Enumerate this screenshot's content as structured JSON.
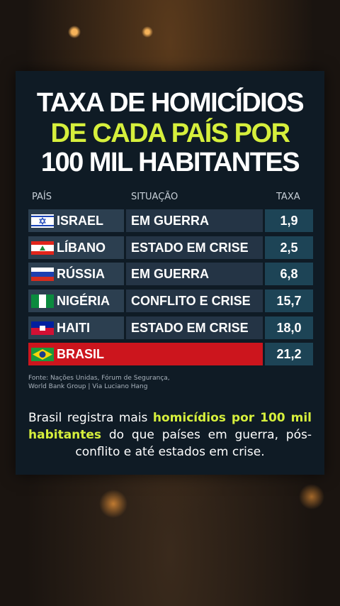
{
  "header": {
    "title_lines": [
      "TAXA DE HOMICÍDIOS",
      "DE CADA PAÍS POR",
      "100 MIL HABITANTES"
    ]
  },
  "table": {
    "columns": [
      "PAÍS",
      "SITUAÇÃO",
      "TAXA"
    ],
    "rows": [
      [
        "ISRAEL",
        "EM GUERRA",
        "1,9"
      ],
      [
        "LÍBANO",
        "ESTADO EM CRISE",
        "2,5"
      ],
      [
        "RÚSSIA",
        "EM GUERRA",
        "6,8"
      ],
      [
        "NIGÉRIA",
        "CONFLITO E CRISE",
        "15,7"
      ],
      [
        "HAITI",
        "ESTADO EM CRISE",
        "18,0"
      ],
      [
        "BRASIL",
        "",
        "21,2"
      ]
    ]
  },
  "source": [
    "Fonte: Nações Unidas, Fórum de Segurança,",
    "World Bank Group | Via Luciano Hang"
  ],
  "caption": {
    "parts": [
      "Brasil registra mais ",
      "homicídios por 100 mil habitantes",
      " do que países em guerra, pós-conflito e até estados em crise."
    ]
  }
}
